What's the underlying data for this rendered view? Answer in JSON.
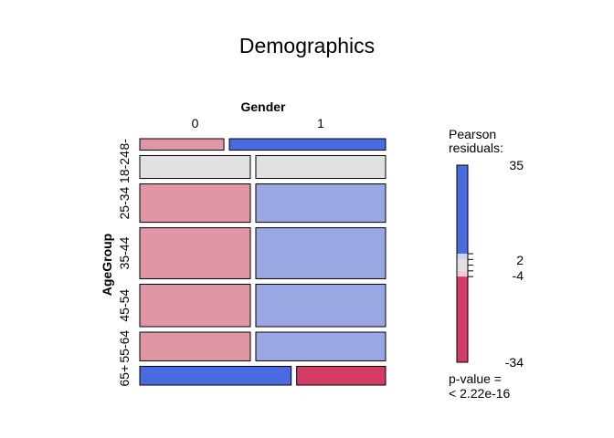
{
  "chart_data": {
    "type": "mosaic",
    "title": "Demographics",
    "col_variable": "Gender",
    "row_variable": "AgeGroup",
    "col_levels": [
      "0",
      "1"
    ],
    "row_levels": [
      "8-",
      "18-24",
      "25-34",
      "35-44",
      "45-54",
      "55-64",
      "65+"
    ],
    "row_proportions": [
      0.039,
      0.078,
      0.131,
      0.174,
      0.145,
      0.098,
      0.064
    ],
    "col_split": [
      0.35,
      0.46,
      0.46,
      0.46,
      0.46,
      0.46,
      0.63
    ],
    "residuals": [
      [
        -8,
        30
      ],
      [
        0,
        0
      ],
      [
        -8,
        7
      ],
      [
        -8,
        7
      ],
      [
        -8,
        7
      ],
      [
        -8,
        7
      ],
      [
        35,
        -34
      ]
    ],
    "legend": {
      "title_line1": "Pearson",
      "title_line2": "residuals:",
      "ticks": [
        {
          "value": 35,
          "label": "35"
        },
        {
          "value": 2,
          "label": "2"
        },
        {
          "value": -4,
          "label": "-4"
        },
        {
          "value": -34,
          "label": "-34"
        }
      ],
      "range": [
        -34,
        35
      ],
      "shading_cutoffs": [
        2,
        4
      ],
      "pvalue_line1": "p-value =",
      "pvalue_line2": "< 2.22e-16"
    },
    "colors": {
      "positive_strong": "#4a6ae0",
      "positive_light": "#9ba7e3",
      "positive_faint": "#cdd3f0",
      "neutral": "#e1e1e1",
      "negative_faint": "#efcdd5",
      "negative_light": "#e196a6",
      "negative_strong": "#d23c67"
    }
  }
}
